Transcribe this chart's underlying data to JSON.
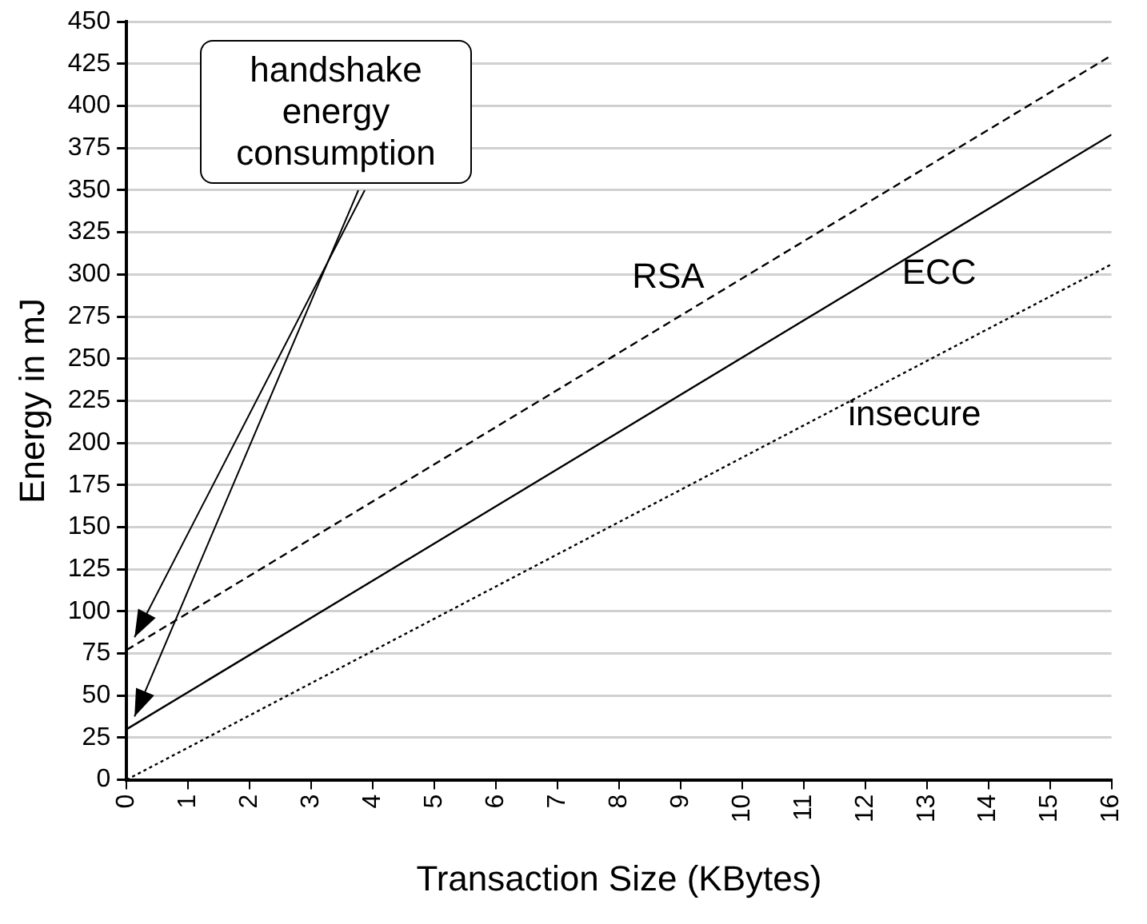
{
  "chart_data": {
    "type": "line",
    "xlabel": "Transaction Size (KBytes)",
    "ylabel": "Energy in mJ",
    "xlim": [
      0,
      16
    ],
    "xticks": [
      0,
      1,
      2,
      3,
      4,
      5,
      6,
      7,
      8,
      9,
      10,
      11,
      12,
      13,
      14,
      15,
      16
    ],
    "ylim": [
      0,
      450
    ],
    "yticks": [
      0,
      25,
      50,
      75,
      100,
      125,
      150,
      175,
      200,
      225,
      250,
      275,
      300,
      325,
      350,
      375,
      400,
      425,
      450
    ],
    "grid": "y",
    "legend": false,
    "marker": "none",
    "x": [
      0,
      16
    ],
    "series": [
      {
        "name": "RSA",
        "values": [
          77,
          430
        ],
        "color": "#000000",
        "line_style": "dashed"
      },
      {
        "name": "ECC",
        "values": [
          30,
          383
        ],
        "color": "#000000",
        "line_style": "solid"
      },
      {
        "name": "insecure",
        "values": [
          0,
          306
        ],
        "color": "#000000",
        "line_style": "dotted"
      }
    ],
    "annotations": [
      "handshake\nenergy\nconsumption"
    ]
  }
}
